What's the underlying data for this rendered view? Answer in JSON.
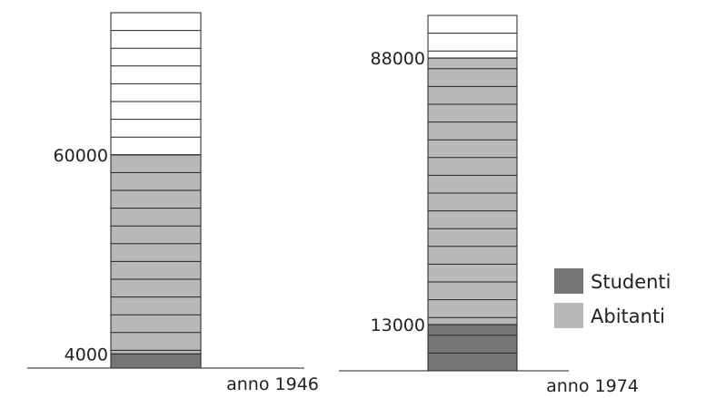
{
  "chart_data": {
    "type": "bar",
    "stacked": true,
    "categories": [
      "anno 1946",
      "anno 1974"
    ],
    "series": [
      {
        "name": "Studenti",
        "values": [
          4000,
          13000
        ],
        "color": "#767676"
      },
      {
        "name": "Abitanti",
        "values": [
          56000,
          75000
        ],
        "color": "#b8b8b8"
      }
    ],
    "value_labels": [
      {
        "category": "anno 1946",
        "labels": [
          "4000",
          "60000"
        ]
      },
      {
        "category": "anno 1974",
        "labels": [
          "13000",
          "88000"
        ]
      }
    ],
    "totals": [
      60000,
      88000
    ],
    "legend": {
      "placement": "right",
      "entries": [
        "Studenti",
        "Abitanti"
      ]
    },
    "grid": false
  }
}
